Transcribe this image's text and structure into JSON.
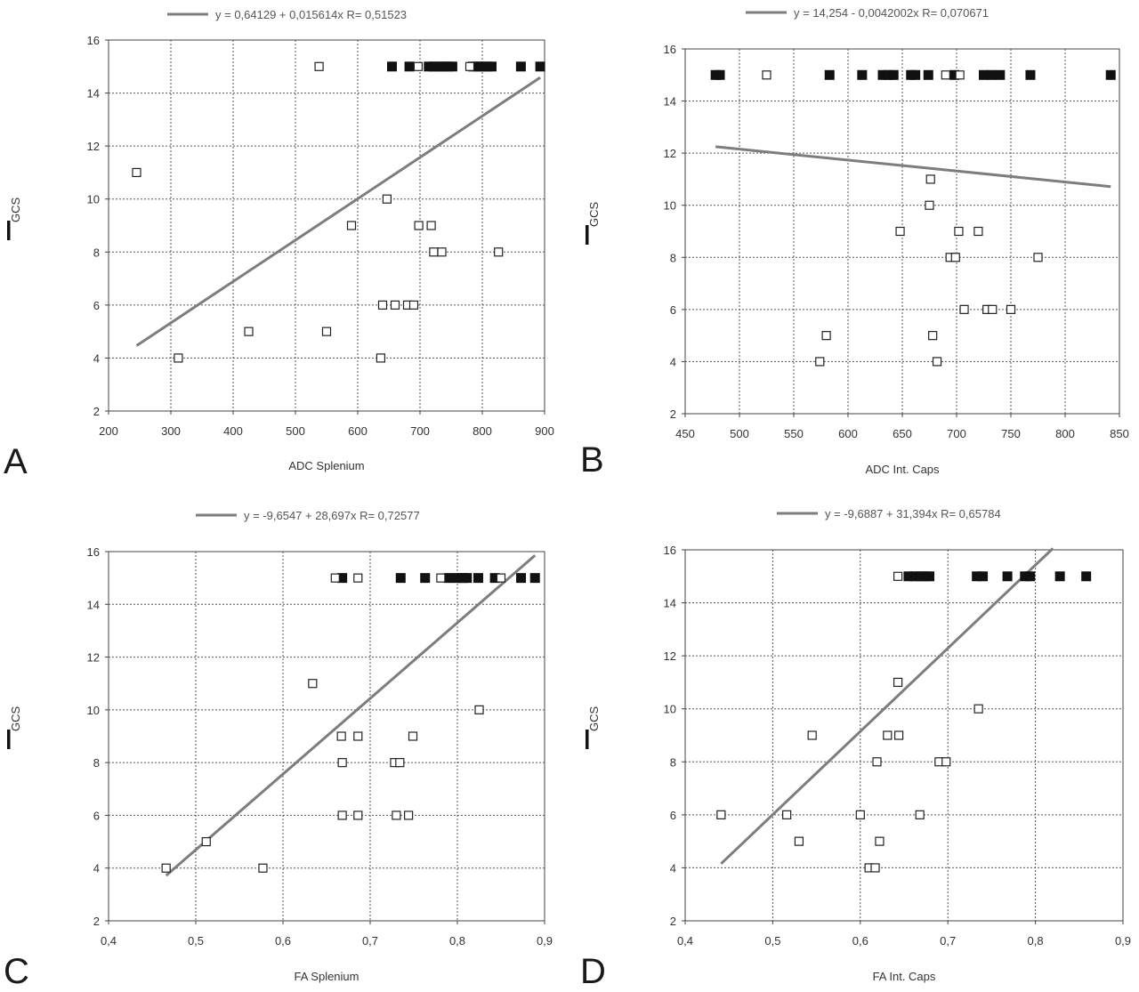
{
  "figure": {
    "panels": [
      "A",
      "B",
      "C",
      "D"
    ]
  },
  "chart_data": [
    {
      "panel": "A",
      "type": "scatter",
      "xlabel": "ADC Splenium",
      "ylabel": "GCS",
      "legend": "y = 0,64129 + 0,015614x   R= 0,51523",
      "xlim": [
        200,
        900
      ],
      "ylim": [
        2,
        16
      ],
      "xticks": [
        200,
        300,
        400,
        500,
        600,
        700,
        800,
        900
      ],
      "xtick_labels": [
        "200",
        "300",
        "400",
        "500",
        "600",
        "700",
        "800",
        "900"
      ],
      "yticks": [
        2,
        4,
        6,
        8,
        10,
        12,
        14,
        16
      ],
      "grid": true,
      "fit": {
        "intercept": 0.64129,
        "slope": 0.015614,
        "x_range": [
          245,
          893
        ]
      },
      "open_points": [
        [
          245,
          11
        ],
        [
          312,
          4
        ],
        [
          425,
          5
        ],
        [
          538,
          15
        ],
        [
          550,
          5
        ],
        [
          590,
          9
        ],
        [
          637,
          4
        ],
        [
          640,
          6
        ],
        [
          647,
          10
        ],
        [
          660,
          6
        ],
        [
          680,
          6
        ],
        [
          690,
          6
        ],
        [
          697,
          15
        ],
        [
          698,
          9
        ],
        [
          718,
          9
        ],
        [
          722,
          8
        ],
        [
          735,
          8
        ],
        [
          780,
          15
        ],
        [
          826,
          8
        ]
      ],
      "filled_points": [
        [
          655,
          15
        ],
        [
          683,
          15
        ],
        [
          714,
          15
        ],
        [
          722,
          15
        ],
        [
          730,
          15
        ],
        [
          738,
          15
        ],
        [
          745,
          15
        ],
        [
          752,
          15
        ],
        [
          785,
          15
        ],
        [
          793,
          15
        ],
        [
          800,
          15
        ],
        [
          808,
          15
        ],
        [
          815,
          15
        ],
        [
          862,
          15
        ],
        [
          893,
          15
        ]
      ]
    },
    {
      "panel": "B",
      "type": "scatter",
      "xlabel": "ADC Int. Caps",
      "ylabel": "GCS",
      "legend": "y = 14,254 - 0,0042002x   R= 0,070671",
      "xlim": [
        450,
        850
      ],
      "ylim": [
        2,
        16
      ],
      "xticks": [
        450,
        500,
        550,
        600,
        650,
        700,
        750,
        800,
        850
      ],
      "xtick_labels": [
        "450",
        "500",
        "550",
        "600",
        "650",
        "700",
        "750",
        "800",
        "850"
      ],
      "yticks": [
        2,
        4,
        6,
        8,
        10,
        12,
        14,
        16
      ],
      "grid": true,
      "fit": {
        "intercept": 14.254,
        "slope": -0.0042002,
        "x_range": [
          478,
          842
        ]
      },
      "open_points": [
        [
          525,
          15
        ],
        [
          574,
          4
        ],
        [
          580,
          5
        ],
        [
          648,
          9
        ],
        [
          675,
          10
        ],
        [
          676,
          11
        ],
        [
          678,
          5
        ],
        [
          682,
          4
        ],
        [
          690,
          15
        ],
        [
          694,
          8
        ],
        [
          699,
          8
        ],
        [
          702,
          9
        ],
        [
          703,
          15
        ],
        [
          707,
          6
        ],
        [
          720,
          9
        ],
        [
          728,
          6
        ],
        [
          733,
          6
        ],
        [
          750,
          6
        ],
        [
          775,
          8
        ]
      ],
      "filled_points": [
        [
          478,
          15
        ],
        [
          482,
          15
        ],
        [
          583,
          15
        ],
        [
          613,
          15
        ],
        [
          632,
          15
        ],
        [
          637,
          15
        ],
        [
          642,
          15
        ],
        [
          658,
          15
        ],
        [
          662,
          15
        ],
        [
          674,
          15
        ],
        [
          698,
          15
        ],
        [
          725,
          15
        ],
        [
          732,
          15
        ],
        [
          740,
          15
        ],
        [
          768,
          15
        ],
        [
          842,
          15
        ]
      ]
    },
    {
      "panel": "C",
      "type": "scatter",
      "xlabel": "FA Splenium",
      "ylabel": "GCS",
      "legend": "y = -9,6547 + 28,697x   R= 0,72577",
      "xlim": [
        0.4,
        0.9
      ],
      "ylim": [
        2,
        16
      ],
      "xticks": [
        0.4,
        0.5,
        0.6,
        0.7,
        0.8,
        0.9
      ],
      "xtick_labels": [
        "0,4",
        "0,5",
        "0,6",
        "0,7",
        "0,8",
        "0,9"
      ],
      "yticks": [
        2,
        4,
        6,
        8,
        10,
        12,
        14,
        16
      ],
      "grid": true,
      "fit": {
        "intercept": -9.6547,
        "slope": 28.697,
        "x_range": [
          0.466,
          0.889
        ]
      },
      "open_points": [
        [
          0.466,
          4
        ],
        [
          0.512,
          5
        ],
        [
          0.577,
          4
        ],
        [
          0.634,
          11
        ],
        [
          0.66,
          15
        ],
        [
          0.667,
          9
        ],
        [
          0.668,
          8
        ],
        [
          0.668,
          6
        ],
        [
          0.686,
          9
        ],
        [
          0.686,
          6
        ],
        [
          0.686,
          15
        ],
        [
          0.728,
          8
        ],
        [
          0.73,
          6
        ],
        [
          0.734,
          8
        ],
        [
          0.744,
          6
        ],
        [
          0.749,
          9
        ],
        [
          0.781,
          15
        ],
        [
          0.825,
          10
        ],
        [
          0.85,
          15
        ]
      ],
      "filled_points": [
        [
          0.668,
          15
        ],
        [
          0.735,
          15
        ],
        [
          0.763,
          15
        ],
        [
          0.79,
          15
        ],
        [
          0.8,
          15
        ],
        [
          0.806,
          15
        ],
        [
          0.811,
          15
        ],
        [
          0.824,
          15
        ],
        [
          0.843,
          15
        ],
        [
          0.873,
          15
        ],
        [
          0.889,
          15
        ]
      ]
    },
    {
      "panel": "D",
      "type": "scatter",
      "xlabel": "FA Int. Caps",
      "ylabel": "GCS",
      "legend": "y = -9,6887 + 31,394x   R= 0,65784",
      "xlim": [
        0.4,
        0.9
      ],
      "ylim": [
        2,
        16
      ],
      "xticks": [
        0.4,
        0.5,
        0.6,
        0.7,
        0.8,
        0.9
      ],
      "xtick_labels": [
        "0,4",
        "0,5",
        "0,6",
        "0,7",
        "0,8",
        "0,9"
      ],
      "yticks": [
        2,
        4,
        6,
        8,
        10,
        12,
        14,
        16
      ],
      "grid": true,
      "fit": {
        "intercept": -9.6887,
        "slope": 31.394,
        "x_range": [
          0.441,
          0.82
        ]
      },
      "open_points": [
        [
          0.441,
          6
        ],
        [
          0.516,
          6
        ],
        [
          0.53,
          5
        ],
        [
          0.545,
          9
        ],
        [
          0.6,
          6
        ],
        [
          0.61,
          4
        ],
        [
          0.617,
          4
        ],
        [
          0.619,
          8
        ],
        [
          0.622,
          5
        ],
        [
          0.631,
          9
        ],
        [
          0.643,
          11
        ],
        [
          0.644,
          9
        ],
        [
          0.643,
          15
        ],
        [
          0.668,
          6
        ],
        [
          0.69,
          8
        ],
        [
          0.698,
          8
        ],
        [
          0.735,
          10
        ]
      ],
      "filled_points": [
        [
          0.655,
          15
        ],
        [
          0.662,
          15
        ],
        [
          0.668,
          15
        ],
        [
          0.674,
          15
        ],
        [
          0.679,
          15
        ],
        [
          0.733,
          15
        ],
        [
          0.74,
          15
        ],
        [
          0.768,
          15
        ],
        [
          0.788,
          15
        ],
        [
          0.794,
          15
        ],
        [
          0.828,
          15
        ],
        [
          0.858,
          15
        ]
      ]
    }
  ]
}
